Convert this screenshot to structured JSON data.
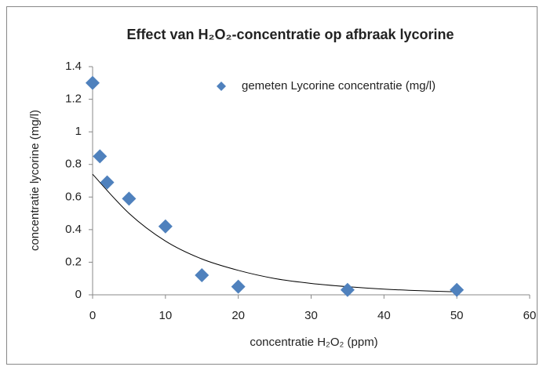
{
  "chart_data": {
    "type": "scatter",
    "title": "Effect van H₂O₂-concentratie op afbraak lycorine",
    "x_label": "concentratie H₂O₂ (ppm)",
    "y_label": "concentratie lycorine (mg/l)",
    "series": [
      {
        "name": "gemeten Lycorine concentratie (mg/l)",
        "color": "#4f81bd",
        "x": [
          0,
          1,
          2,
          5,
          10,
          15,
          20,
          35,
          50
        ],
        "values": [
          1.3,
          0.85,
          0.69,
          0.59,
          0.42,
          0.12,
          0.05,
          0.03,
          0.03
        ]
      }
    ],
    "trendline": {
      "x": [
        0,
        5,
        10,
        15,
        20,
        25,
        30,
        35,
        40,
        45,
        50
      ],
      "values": [
        0.74,
        0.5,
        0.33,
        0.22,
        0.15,
        0.1,
        0.07,
        0.05,
        0.035,
        0.025,
        0.018
      ]
    },
    "xlim": [
      0,
      60
    ],
    "xticks": [
      0,
      10,
      20,
      30,
      40,
      50,
      60
    ],
    "ylim": [
      0,
      1.4
    ],
    "yticks": [
      0,
      0.2,
      0.4,
      0.6,
      0.8,
      1,
      1.2,
      1.4
    ],
    "grid": false,
    "legend": "top-right"
  }
}
